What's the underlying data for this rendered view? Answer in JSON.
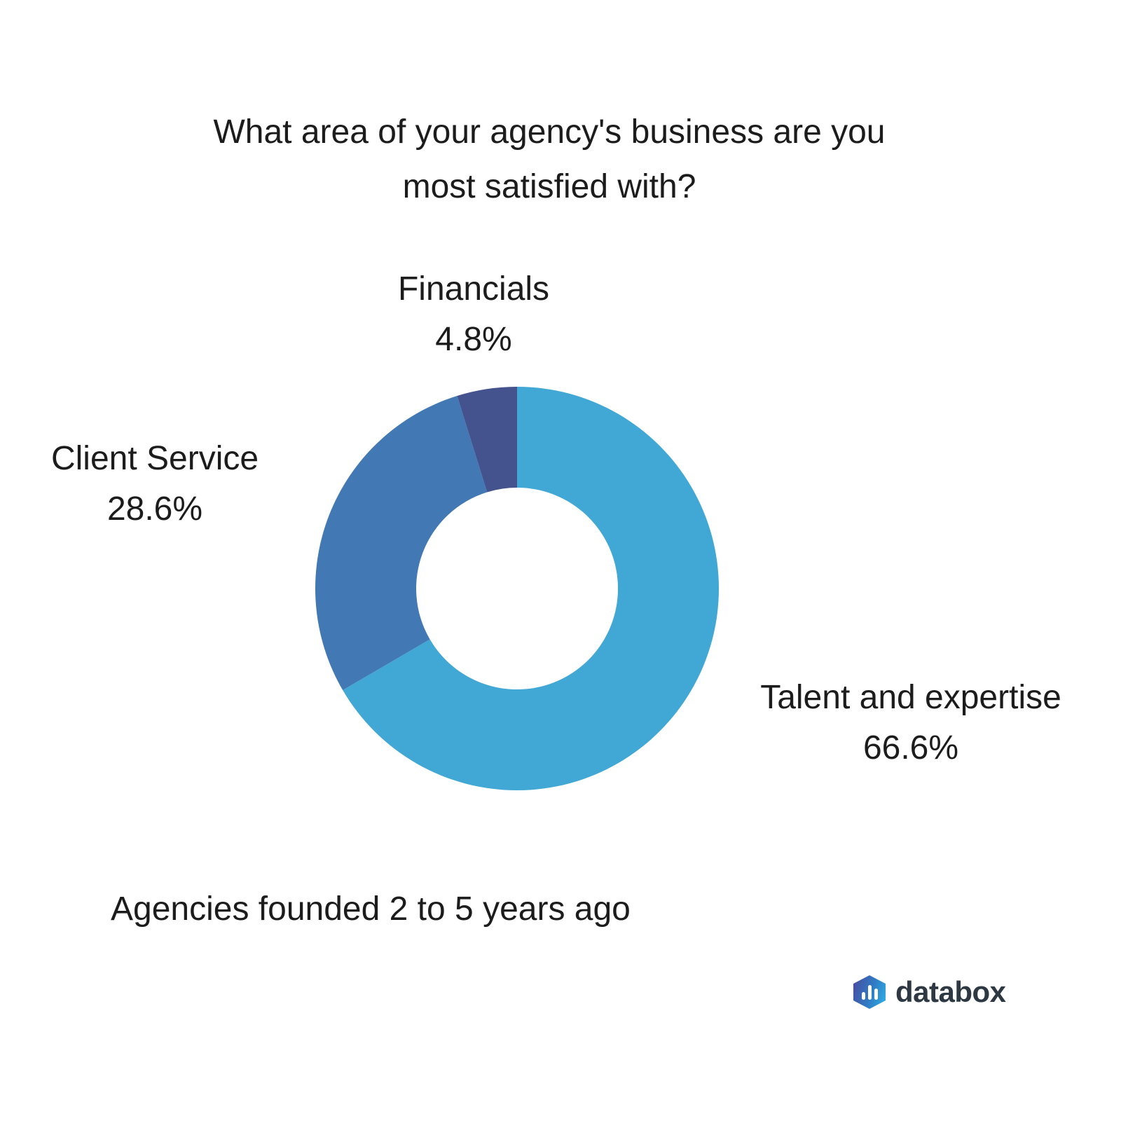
{
  "title": {
    "text": "What area of your agency's business are you most satisfied with?",
    "lines": [
      "What area of your agency's business are you",
      "most satisfied with?"
    ]
  },
  "chart_data": {
    "type": "pie",
    "subtype": "donut",
    "title": "What area of your agency's business are you most satisfied with?",
    "categories": [
      "Talent and expertise",
      "Client Service",
      "Financials"
    ],
    "values": [
      66.6,
      28.6,
      4.8
    ],
    "unit": "percent",
    "colors": [
      "#41a8d5",
      "#4278b4",
      "#44528d"
    ],
    "start_angle_deg": 0,
    "direction": "clockwise",
    "hole_ratio": 0.5,
    "legend_position": "none",
    "data_labels": [
      {
        "text": "Talent and expertise",
        "value_text": "66.6%"
      },
      {
        "text": "Client Service",
        "value_text": "28.6%"
      },
      {
        "text": "Financials",
        "value_text": "4.8%"
      }
    ]
  },
  "caption": "Agencies founded 2 to 5 years ago",
  "logo": {
    "brand": "databox",
    "icon": "databox-hexagon-bar-chart-icon",
    "icon_gradient": [
      "#474fa3",
      "#2fa9e0"
    ],
    "text_color": "#2e3842"
  }
}
